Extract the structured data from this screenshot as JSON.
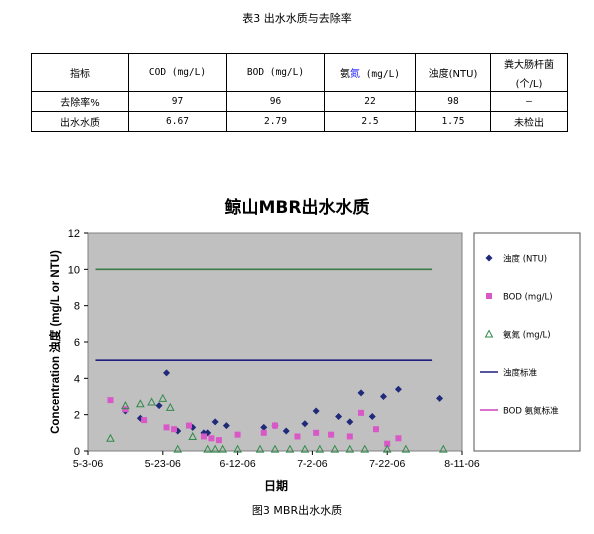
{
  "table_caption": "表3 出水水质与去除率",
  "table": {
    "headers": {
      "indicator": "指标",
      "cod": "COD (mg/L)",
      "bod": "BOD (mg/L)",
      "ammonia_a": "氨",
      "ammonia_b": "氮",
      "ammonia_unit": " (mg/L)",
      "turbidity": "浊度(NTU)",
      "coliform_line1": "粪大肠杆菌",
      "coliform_line2": "(个/L)"
    },
    "rows": [
      {
        "label": "去除率%",
        "cod": "97",
        "bod": "96",
        "ammonia": "22",
        "turbidity": "98",
        "coliform": "–"
      },
      {
        "label": "出水水质",
        "cod": "6.67",
        "bod": "2.79",
        "ammonia": "2.5",
        "turbidity": "1.75",
        "coliform": "未检出"
      }
    ]
  },
  "figure_caption": "图3 MBR出水水质",
  "chart_data": {
    "type": "scatter",
    "title": "鲸山MBR出水水质",
    "xlabel": "日期",
    "ylabel": "Concentration 浊度 (mg/L or NTU)",
    "xlim": [
      "2006-05-03",
      "2006-08-11"
    ],
    "x_ticks": [
      "5-3-06",
      "5-23-06",
      "6-12-06",
      "7-2-06",
      "7-22-06",
      "8-11-06"
    ],
    "ylim": [
      0,
      12
    ],
    "y_ticks": [
      0,
      2,
      4,
      6,
      8,
      10,
      12
    ],
    "grid": false,
    "plot_background": "#c0c0c0",
    "legend_position": "right",
    "series": [
      {
        "name": "浊度 (NTU)",
        "marker": "diamond",
        "color": "#1f2a78",
        "x": [
          "2006-05-13",
          "2006-05-17",
          "2006-05-22",
          "2006-05-24",
          "2006-05-27",
          "2006-05-31",
          "2006-06-03",
          "2006-06-04",
          "2006-06-06",
          "2006-06-09",
          "2006-06-19",
          "2006-06-22",
          "2006-06-25",
          "2006-06-30",
          "2006-07-03",
          "2006-07-09",
          "2006-07-12",
          "2006-07-15",
          "2006-07-18",
          "2006-07-21",
          "2006-07-25",
          "2006-08-05"
        ],
        "y": [
          2.2,
          1.8,
          2.5,
          4.3,
          1.1,
          1.3,
          1.0,
          1.0,
          1.6,
          1.4,
          1.3,
          1.4,
          1.1,
          1.5,
          2.2,
          1.9,
          1.6,
          3.2,
          1.9,
          3.0,
          3.4,
          2.9
        ]
      },
      {
        "name": "BOD (mg/L)",
        "marker": "square",
        "color": "#d958c8",
        "x": [
          "2006-05-09",
          "2006-05-13",
          "2006-05-18",
          "2006-05-24",
          "2006-05-26",
          "2006-05-30",
          "2006-06-03",
          "2006-06-05",
          "2006-06-07",
          "2006-06-12",
          "2006-06-19",
          "2006-06-22",
          "2006-06-28",
          "2006-07-03",
          "2006-07-07",
          "2006-07-12",
          "2006-07-15",
          "2006-07-19",
          "2006-07-22",
          "2006-07-25"
        ],
        "y": [
          2.8,
          2.3,
          1.7,
          1.3,
          1.2,
          1.4,
          0.8,
          0.7,
          0.6,
          0.9,
          1.0,
          1.4,
          0.8,
          1.0,
          0.9,
          0.8,
          2.1,
          1.2,
          0.4,
          0.7
        ]
      },
      {
        "name": "氨氮 (mg/L)",
        "marker": "triangle",
        "color": "#2f8a4a",
        "x": [
          "2006-05-09",
          "2006-05-13",
          "2006-05-17",
          "2006-05-20",
          "2006-05-23",
          "2006-05-25",
          "2006-05-27",
          "2006-05-31",
          "2006-06-04",
          "2006-06-06",
          "2006-06-08",
          "2006-06-12",
          "2006-06-18",
          "2006-06-22",
          "2006-06-26",
          "2006-06-30",
          "2006-07-04",
          "2006-07-08",
          "2006-07-12",
          "2006-07-16",
          "2006-07-22",
          "2006-07-27",
          "2006-08-06"
        ],
        "y": [
          0.7,
          2.5,
          2.6,
          2.7,
          2.9,
          2.4,
          0.1,
          0.8,
          0.1,
          0.1,
          0.1,
          0.1,
          0.1,
          0.1,
          0.1,
          0.1,
          0.1,
          0.1,
          0.1,
          0.1,
          0.1,
          0.1,
          0.1
        ]
      },
      {
        "name": "浊度标准",
        "marker": "line",
        "color": "#1f1f80",
        "x": [
          "2006-05-05",
          "2006-08-03"
        ],
        "y": [
          5,
          5
        ]
      },
      {
        "name": "BOD 氨氮标准",
        "marker": "line",
        "color": "#cc44bb",
        "x": [
          "2006-05-05",
          "2006-08-03"
        ],
        "y": [
          10,
          10
        ]
      }
    ],
    "standard_line_10_color": "#3e7a4a"
  }
}
